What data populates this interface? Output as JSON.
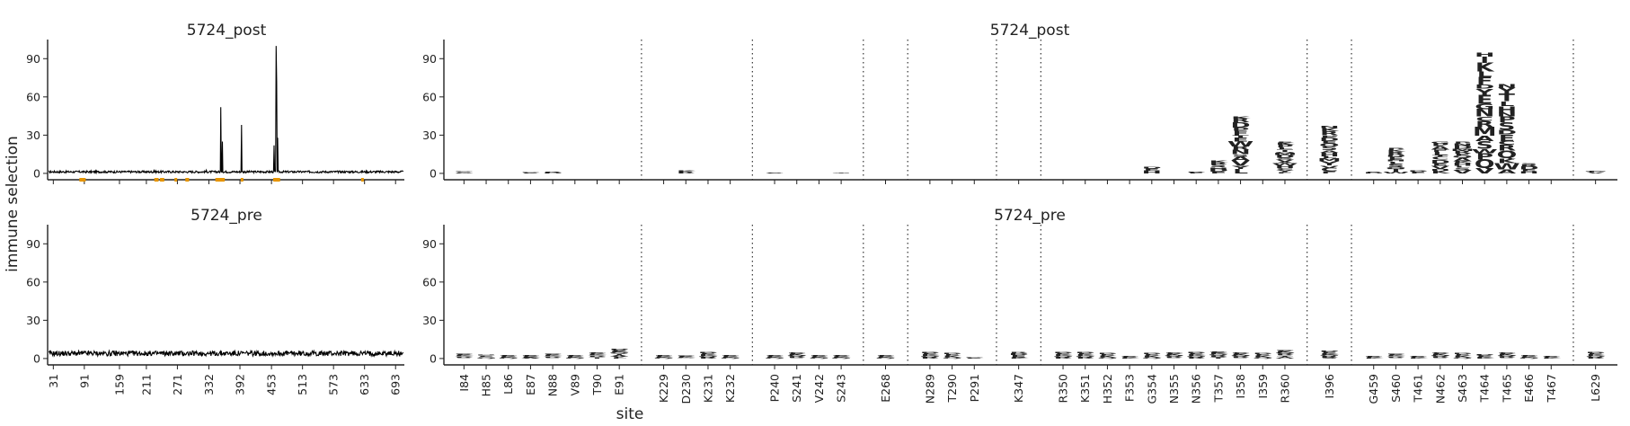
{
  "figure": {
    "ylabel": "immune selection",
    "xlabel": "site"
  },
  "chart_data": [
    {
      "type": "line",
      "title": "5724_post",
      "ylim": [
        -5,
        105
      ],
      "yticks": [
        0,
        30,
        60,
        90
      ],
      "xlim": [
        20,
        710
      ],
      "xticks": [
        31,
        91,
        159,
        211,
        271,
        332,
        392,
        453,
        513,
        573,
        633,
        693
      ],
      "baseline": 1.2,
      "peaks": [
        [
          226,
          3
        ],
        [
          327,
          2.5
        ],
        [
          355,
          52
        ],
        [
          358,
          25
        ],
        [
          395,
          38
        ],
        [
          458,
          22
        ],
        [
          462,
          100
        ],
        [
          463,
          72
        ],
        [
          465,
          28
        ]
      ],
      "highlighted_sites": [
        84,
        85,
        86,
        87,
        88,
        89,
        90,
        91,
        229,
        230,
        231,
        232,
        240,
        241,
        242,
        243,
        268,
        289,
        290,
        291,
        347,
        350,
        351,
        352,
        353,
        354,
        355,
        356,
        357,
        358,
        359,
        360,
        396,
        459,
        460,
        461,
        462,
        463,
        464,
        465,
        466,
        467,
        629
      ],
      "highlight_color": "#e69500"
    },
    {
      "type": "line",
      "title": "5724_pre",
      "ylim": [
        -5,
        105
      ],
      "yticks": [
        0,
        30,
        60,
        90
      ],
      "xlim": [
        20,
        710
      ],
      "xticks": [
        31,
        91,
        159,
        211,
        271,
        332,
        392,
        453,
        513,
        573,
        633,
        693
      ],
      "baseline": 4
    },
    {
      "type": "logo",
      "title": "5724_post",
      "ylim": [
        -5,
        105
      ],
      "yticks": [
        0,
        30,
        60,
        90
      ],
      "sites": [
        "I84",
        "H85",
        "L86",
        "E87",
        "N88",
        "V89",
        "T90",
        "E91",
        "K229",
        "D230",
        "K231",
        "K232",
        "P240",
        "S241",
        "V242",
        "S243",
        "E268",
        "N289",
        "T290",
        "P291",
        "K347",
        "R350",
        "K351",
        "H352",
        "F353",
        "G354",
        "N355",
        "N356",
        "T357",
        "I358",
        "I359",
        "R360",
        "I396",
        "G459",
        "S460",
        "T461",
        "N462",
        "S463",
        "T464",
        "T465",
        "E466",
        "T467",
        "L629"
      ],
      "segment_breaks_after": [
        "E91",
        "K232",
        "S243",
        "E268",
        "P291",
        "K347",
        "R360",
        "I396",
        "T467"
      ],
      "stacks": {
        "I84": [
          "DEKQ",
          1.2
        ],
        "E87": [
          "DEK",
          1.0
        ],
        "N88": [
          "RKD",
          1.5
        ],
        "D230": [
          "KR",
          2.0
        ],
        "P240": [
          "ED",
          0.5
        ],
        "S243": [
          "GT",
          0.6
        ],
        "G354": [
          "DEH",
          5.0
        ],
        "N356": [
          "RDE",
          1.5
        ],
        "T357": [
          "KRSHDE",
          10.0
        ],
        "I358": [
          "KRDPFTEWRNSAVYL",
          45.0
        ],
        "R360": [
          "EKPLTQMDSVAWHCYF",
          25.0
        ],
        "I396": [
          "NKRPDEQSAHLMYVCF",
          37.0
        ],
        "G459": [
          "ED",
          1.5
        ],
        "S460": [
          "PKRDEHLSQTW",
          20.0
        ],
        "T461": [
          "DE",
          2.5
        ],
        "N462": [
          "GPAFLTCDEVHK",
          25.0
        ],
        "S463": [
          "PNDMREQAKHLSV",
          25.0
        ],
        "T464": [
          "HIKLFDYEGNCRMASWPQV",
          95.0
        ],
        "T465": [
          "NYTLHNPSDECRQKWA",
          70.0
        ],
        "E466": [
          "SRDEH",
          8.0
        ],
        "L629": [
          "MFV",
          2.0
        ]
      }
    },
    {
      "type": "logo",
      "title": "5724_pre",
      "ylim": [
        -5,
        105
      ],
      "yticks": [
        0,
        30,
        60,
        90
      ],
      "sites": [
        "I84",
        "H85",
        "L86",
        "E87",
        "N88",
        "V89",
        "T90",
        "E91",
        "K229",
        "D230",
        "K231",
        "K232",
        "P240",
        "S241",
        "V242",
        "S243",
        "E268",
        "N289",
        "T290",
        "P291",
        "K347",
        "R350",
        "K351",
        "H352",
        "F353",
        "G354",
        "N355",
        "N356",
        "T357",
        "I358",
        "I359",
        "R360",
        "I396",
        "G459",
        "S460",
        "T461",
        "N462",
        "S463",
        "T464",
        "T465",
        "E466",
        "T467",
        "L629"
      ],
      "segment_breaks_after": [
        "E91",
        "K232",
        "S243",
        "E268",
        "P291",
        "K347",
        "R360",
        "I396",
        "T467"
      ],
      "stacks": {
        "I84": [
          "DEKQRS",
          4.0
        ],
        "H85": [
          "NDEKQ",
          3.0
        ],
        "L86": [
          "DEKQ",
          3.0
        ],
        "E87": [
          "DEKA",
          3.0
        ],
        "N88": [
          "DEKQRS",
          4.0
        ],
        "V89": [
          "DEKQ",
          3.0
        ],
        "T90": [
          "DEKQRST",
          5.0
        ],
        "E91": [
          "RDEKQSTAVL",
          8.0
        ],
        "K229": [
          "DEKQ",
          3.0
        ],
        "D230": [
          "DEKQ",
          2.5
        ],
        "K231": [
          "DEKQR",
          5.0
        ],
        "K232": [
          "DEKQ",
          3.0
        ],
        "P240": [
          "DEKQ",
          3.0
        ],
        "S241": [
          "DEKQRS",
          5.0
        ],
        "V242": [
          "DEKQ",
          3.0
        ],
        "S243": [
          "DEKQ",
          3.0
        ],
        "E268": [
          "DEKQ",
          3.0
        ],
        "N289": [
          "DEKQR",
          5.0
        ],
        "T290": [
          "DEKQ",
          4.0
        ],
        "P291": [
          "DEK",
          1.0
        ],
        "K347": [
          "RDEK",
          5.0
        ],
        "R350": [
          "DEKQR",
          5.0
        ],
        "K351": [
          "DEKQR",
          5.0
        ],
        "H352": [
          "DEKQ",
          4.0
        ],
        "F353": [
          "DEK",
          2.0
        ],
        "G354": [
          "DEKQ",
          4.0
        ],
        "N355": [
          "DEKQRS",
          5.0
        ],
        "N356": [
          "DEKQR",
          5.0
        ],
        "T357": [
          "DEKQRST",
          6.0
        ],
        "I358": [
          "DEKQRS",
          5.0
        ],
        "I359": [
          "DEKQ",
          4.0
        ],
        "R360": [
          "DEKQRSTA",
          7.0
        ],
        "I396": [
          "DEKQRS",
          6.0
        ],
        "G459": [
          "DEK",
          2.0
        ],
        "S460": [
          "DEKQRS",
          4.0
        ],
        "T461": [
          "DEK",
          2.0
        ],
        "N462": [
          "DEKQRS",
          5.0
        ],
        "S463": [
          "DEKQ",
          4.0
        ],
        "T464": [
          "DEK",
          3.0
        ],
        "T465": [
          "DEKQRS",
          5.0
        ],
        "E466": [
          "DEKQ",
          3.0
        ],
        "T467": [
          "DEK",
          2.0
        ],
        "L629": [
          "DEKQR",
          5.0
        ]
      }
    }
  ]
}
